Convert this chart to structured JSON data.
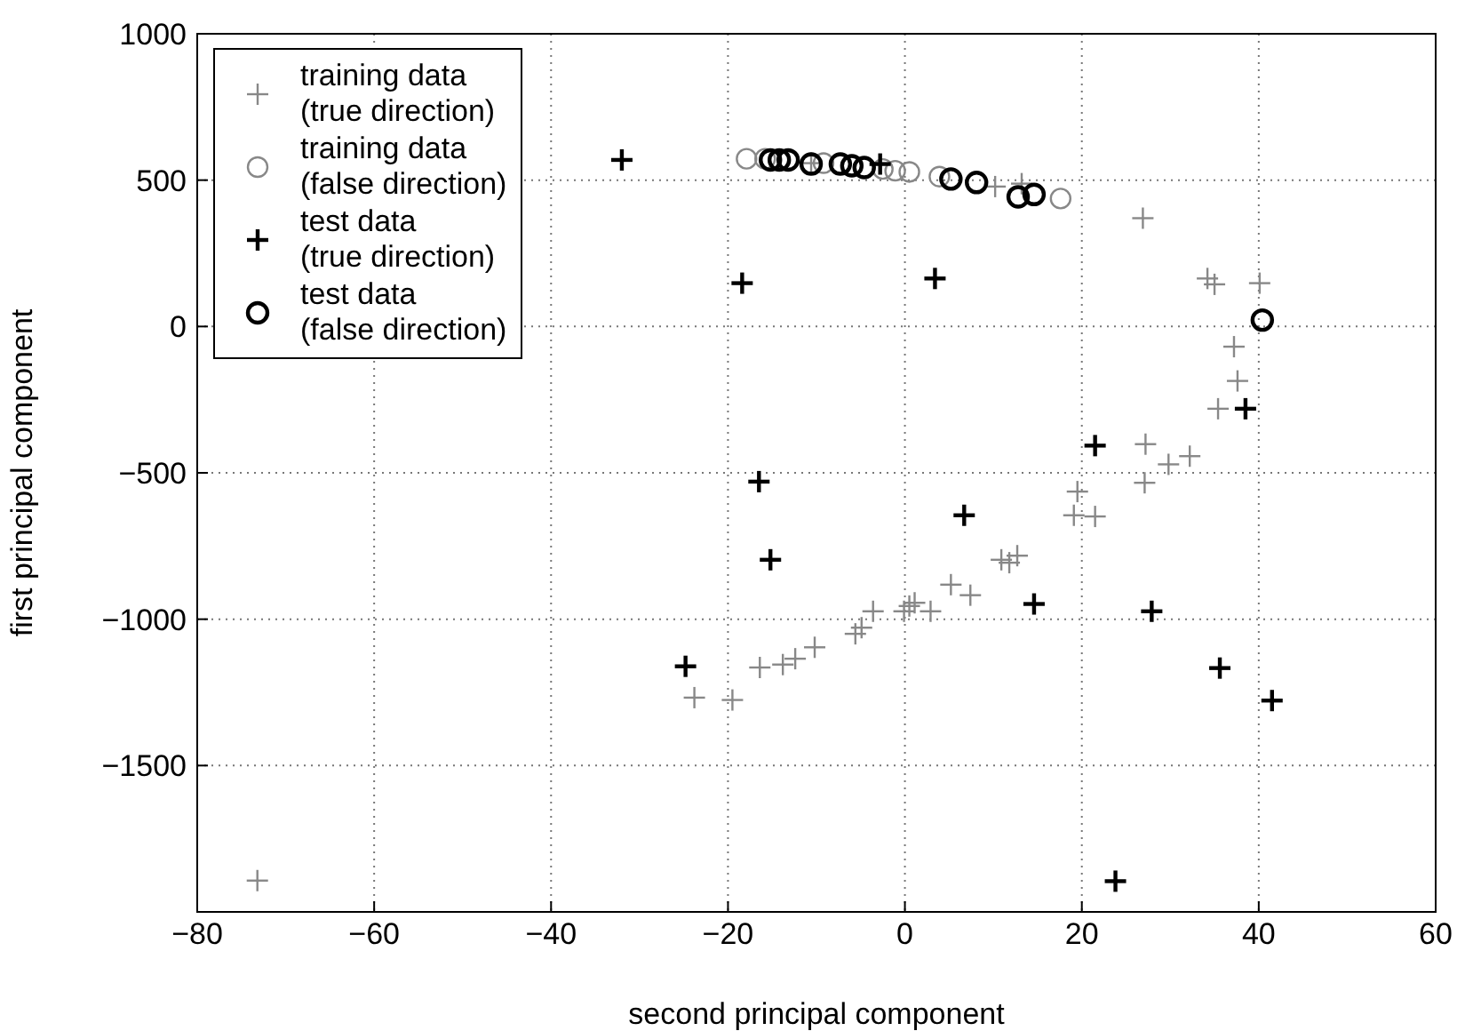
{
  "chart_data": {
    "type": "scatter",
    "xlabel": "second principal component",
    "ylabel": "first principal component",
    "xlim": [
      -80,
      60
    ],
    "xticks": [
      {
        "value": -80,
        "label": "−80"
      },
      {
        "value": -60,
        "label": "−60"
      },
      {
        "value": -40,
        "label": "−40"
      },
      {
        "value": -20,
        "label": "−20"
      },
      0,
      20,
      40,
      60
    ],
    "ylim": [
      -2000,
      1000
    ],
    "yticks": [
      {
        "value": -1500,
        "label": "−1500"
      },
      {
        "value": -1000,
        "label": "−1000"
      },
      {
        "value": -500,
        "label": "−500"
      },
      0,
      500,
      1000
    ],
    "grid": true,
    "legend": "top left",
    "series": [
      {
        "name": "training data (true direction)",
        "color": "#888888",
        "marker": "cross",
        "x": [
          -73.2,
          -23.8,
          -19.5,
          -16.4,
          -13.8,
          -12.4,
          -10.2,
          -5.6,
          -4.9,
          -3.6,
          -0.1,
          0.5,
          1.1,
          2.9,
          5.2,
          7.4,
          10.9,
          11.8,
          12.7,
          19.1,
          19.5,
          21.5,
          26.9,
          34.2,
          35.0,
          40.1,
          37.2,
          37.6,
          35.4,
          27.2,
          29.8,
          32.2,
          27.1,
          -10.6,
          10.2,
          13.2
        ],
        "values": [
          -1893,
          -1268,
          -1276,
          -1165,
          -1155,
          -1135,
          -1096,
          -1050,
          -1029,
          -973,
          -973,
          -955,
          -944,
          -973,
          -882,
          -918,
          -797,
          -807,
          -783,
          -645,
          -564,
          -649,
          370,
          164,
          144,
          148,
          -69,
          -186,
          -281,
          -402,
          -471,
          -443,
          -534,
          558,
          478,
          488
        ]
      },
      {
        "name": "training data (false direction)",
        "color": "#888888",
        "marker": "circle",
        "x": [
          -17.9,
          -15.8,
          -9.2,
          -2.5,
          -1.1,
          0.5,
          3.9,
          17.6
        ],
        "values": [
          573,
          573,
          558,
          538,
          532,
          528,
          512,
          437
        ]
      },
      {
        "name": "test data (true direction)",
        "color": "#000000",
        "marker": "cross",
        "x": [
          -32.0,
          -2.8,
          -18.4,
          3.4,
          38.5,
          21.5,
          -16.5,
          -15.2,
          6.7,
          14.6,
          -24.8,
          27.9,
          35.6,
          41.5,
          23.8
        ],
        "values": [
          569,
          555,
          148,
          164,
          -281,
          -407,
          -530,
          -797,
          -645,
          -948,
          -1161,
          -973,
          -1167,
          -1278,
          -1895
        ]
      },
      {
        "name": "test data (false direction)",
        "color": "#000000",
        "marker": "circle",
        "x": [
          -15.2,
          -14.2,
          -13.2,
          -10.6,
          -7.3,
          -6.0,
          -4.6,
          5.2,
          8.1,
          12.8,
          14.6,
          40.4
        ],
        "values": [
          569,
          569,
          569,
          555,
          555,
          549,
          543,
          504,
          492,
          443,
          451,
          22
        ]
      }
    ]
  }
}
